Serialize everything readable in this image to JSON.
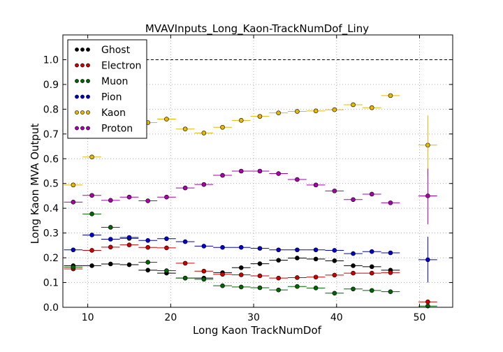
{
  "chart_data": {
    "type": "scatter",
    "title": "MVAVInputs_Long_Kaon-TrackNumDof_Liny",
    "xlabel": "Long Kaon TrackNumDof",
    "ylabel": "Long Kaon MVA Output",
    "xlim": [
      7,
      54
    ],
    "ylim": [
      0.0,
      1.1
    ],
    "xticks": [
      "10",
      "20",
      "30",
      "40",
      "50"
    ],
    "yticks": [
      "0.0",
      "0.1",
      "0.2",
      "0.3",
      "0.4",
      "0.5",
      "0.6",
      "0.7",
      "0.8",
      "0.9",
      "1.0"
    ],
    "grid": true,
    "reference_line": 1.0,
    "legend_position": "top-left",
    "x": [
      8.25,
      10.5,
      12.75,
      15,
      17.25,
      19.5,
      21.75,
      24,
      26.25,
      28.5,
      30.75,
      33,
      35.25,
      37.5,
      39.75,
      42,
      44.25,
      46.5,
      48.75,
      51
    ],
    "series": [
      {
        "name": "Ghost",
        "color": "#000000",
        "values": [
          0.168,
          0.168,
          0.175,
          0.172,
          0.15,
          0.138,
          0.118,
          0.118,
          0.14,
          0.16,
          0.176,
          0.19,
          0.199,
          0.195,
          0.188,
          0.168,
          0.164,
          0.15,
          null,
          null
        ]
      },
      {
        "name": "Electron",
        "color": "#cc0000",
        "values": [
          0.155,
          0.23,
          0.243,
          0.252,
          0.242,
          0.24,
          0.178,
          0.146,
          0.133,
          0.131,
          0.127,
          0.118,
          0.12,
          0.122,
          0.13,
          0.138,
          0.138,
          0.14,
          null,
          0.022
        ]
      },
      {
        "name": "Muon",
        "color": "#006400",
        "values": [
          0.162,
          0.377,
          0.323,
          0.278,
          0.182,
          0.148,
          0.118,
          0.113,
          0.087,
          0.082,
          0.079,
          0.07,
          0.084,
          0.078,
          0.057,
          0.074,
          0.068,
          0.063,
          null,
          0.005
        ]
      },
      {
        "name": "Pion",
        "color": "#0000cc",
        "values": [
          0.232,
          0.292,
          0.275,
          0.282,
          0.27,
          0.277,
          0.265,
          0.247,
          0.242,
          0.242,
          0.238,
          0.232,
          0.232,
          0.232,
          0.23,
          0.217,
          0.225,
          0.22,
          null,
          0.192
        ]
      },
      {
        "name": "Kaon",
        "color": "#e6b800",
        "values": [
          0.494,
          0.607,
          null,
          null,
          0.746,
          0.76,
          0.72,
          0.704,
          0.727,
          0.755,
          0.771,
          0.785,
          0.791,
          0.793,
          0.798,
          0.818,
          0.806,
          0.855,
          null,
          0.655
        ]
      },
      {
        "name": "Proton",
        "color": "#aa00aa",
        "values": [
          0.425,
          0.452,
          0.432,
          0.445,
          0.43,
          0.445,
          0.482,
          0.496,
          0.533,
          0.55,
          0.55,
          0.54,
          0.516,
          0.494,
          0.47,
          0.435,
          0.457,
          0.422,
          null,
          0.45
        ]
      }
    ],
    "error_bars": [
      {
        "series": "Kaon",
        "x": 51,
        "low": 0.53,
        "high": 0.775
      },
      {
        "series": "Proton",
        "x": 51,
        "low": 0.335,
        "high": 0.56
      },
      {
        "series": "Pion",
        "x": 51,
        "low": 0.1,
        "high": 0.285
      },
      {
        "series": "Electron",
        "x": 51,
        "low": 0.01,
        "high": 0.03
      },
      {
        "series": "Muon",
        "x": 51,
        "low": 0.0,
        "high": 0.012
      }
    ]
  }
}
